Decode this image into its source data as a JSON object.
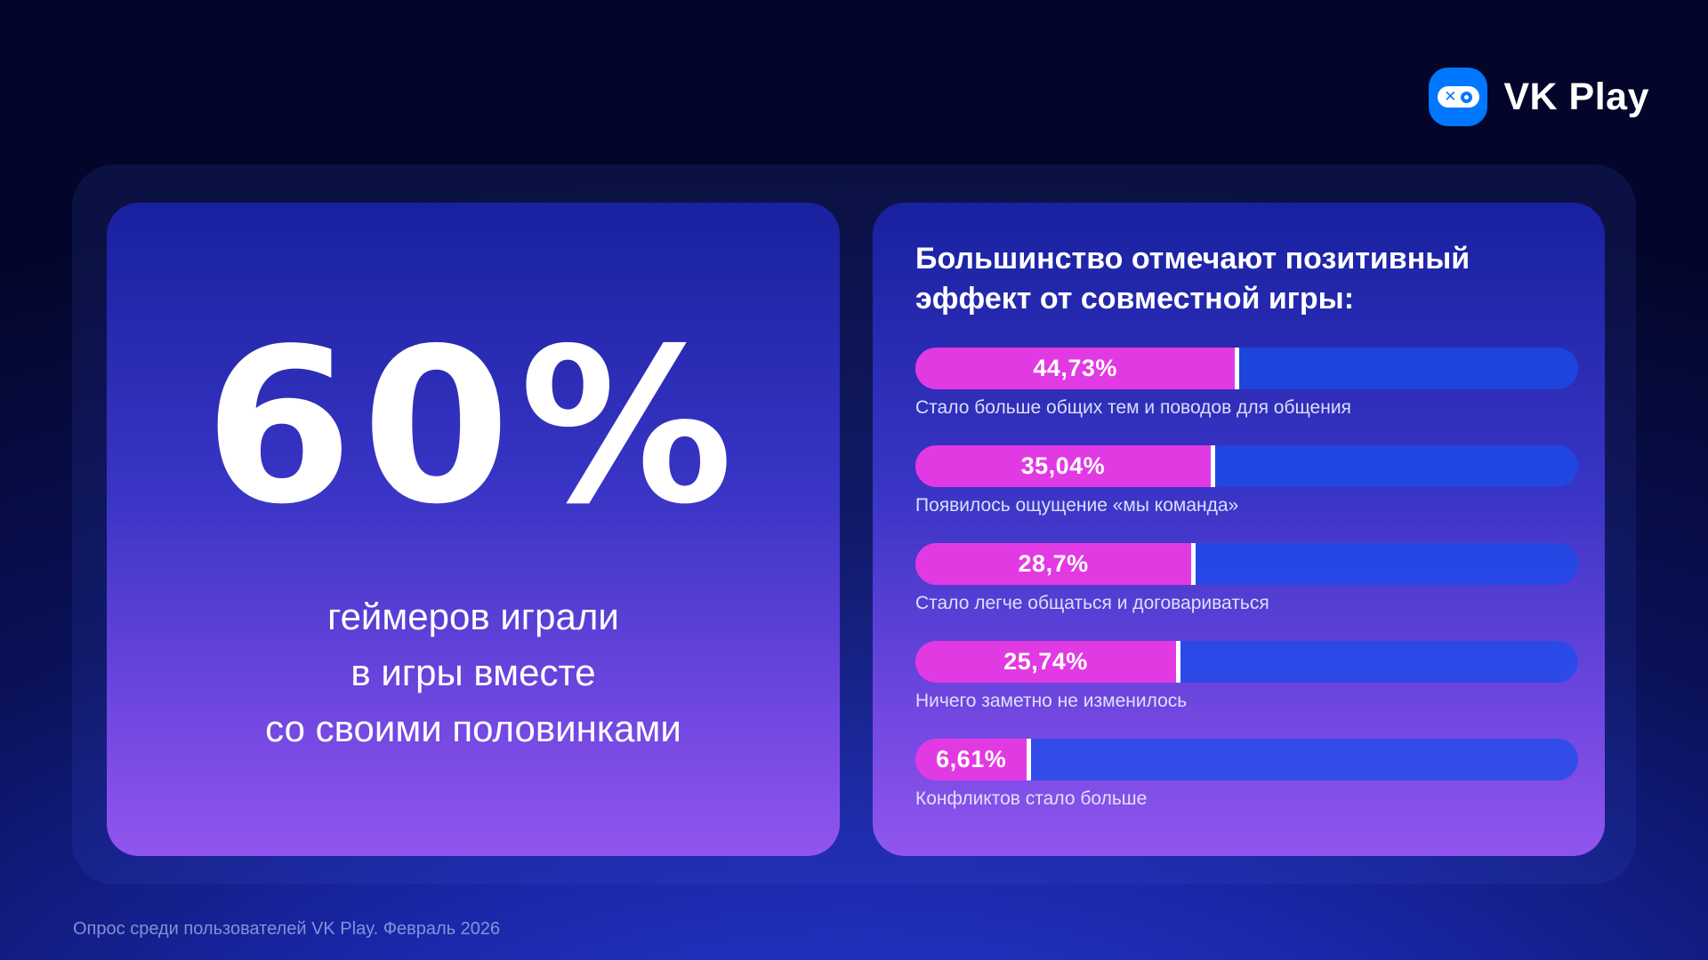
{
  "brand": {
    "name": "VK Play",
    "logo_icon": "vk-play-xo-gamepad",
    "logo_color": "#0077ff"
  },
  "left_card": {
    "stat_value": "60%",
    "stat_caption_lines": [
      "геймеров играли",
      "в игры вместе",
      "со своими половинками"
    ]
  },
  "right_card": {
    "title_lines": [
      "Большинство отмечают позитивный",
      "эффект от совместной игры:"
    ]
  },
  "chart_data": {
    "type": "bar",
    "orientation": "horizontal",
    "title": "Большинство отмечают позитивный эффект от совместной игры:",
    "categories": [
      "Стало больше общих тем и поводов для общения",
      "Появилось ощущение «мы команда»",
      "Стало легче общаться и договариваться",
      "Ничего заметно не изменилось",
      "Конфликтов стало больше"
    ],
    "values": [
      44.73,
      35.04,
      28.7,
      25.74,
      6.61
    ],
    "value_labels": [
      "44,73%",
      "35,04%",
      "28,7%",
      "25,74%",
      "6,61%"
    ],
    "xlim": [
      0,
      100
    ],
    "grid": false,
    "legend": false,
    "bar_color": "#e23ae2",
    "track_color": "#1d49d4",
    "divider_color": "#ffffff",
    "visual_fill_pct": [
      48.9,
      45.2,
      42.3,
      40.0,
      17.5
    ]
  },
  "footer": {
    "source": "Опрос среди пользователей VK Play. Февраль 2026"
  }
}
